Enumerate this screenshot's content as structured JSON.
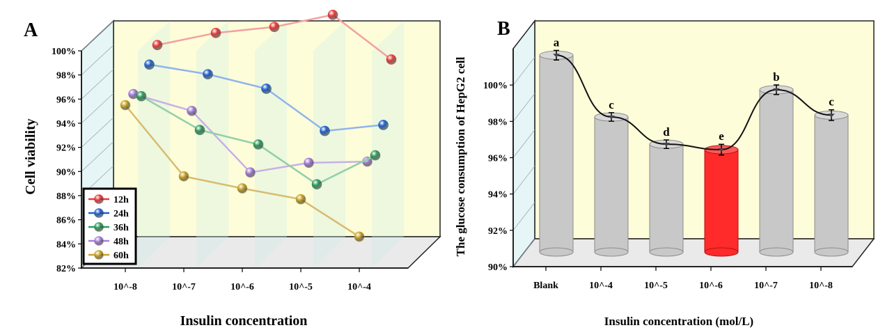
{
  "chart_data": [
    {
      "panel_label": "A",
      "type": "line",
      "title": "",
      "xlabel": "Insulin concentration",
      "ylabel": "Cell viability",
      "categories": [
        "10^-8",
        "10^-7",
        "10^-6",
        "10^-5",
        "10^-4"
      ],
      "ylim": [
        82,
        100
      ],
      "yticks": [
        "82%",
        "84%",
        "86%",
        "88%",
        "90%",
        "92%",
        "94%",
        "96%",
        "98%",
        "100%"
      ],
      "legend_position": "bottom-left",
      "series": [
        {
          "name": "12h",
          "values": [
            98.0,
            99.0,
            99.5,
            100.5,
            96.8
          ],
          "color": "#e83a3a",
          "line": "#f2a0a0"
        },
        {
          "name": "24h",
          "values": [
            97.0,
            96.2,
            95.0,
            91.5,
            92.0
          ],
          "color": "#1f5fcc",
          "line": "#8fb4ec"
        },
        {
          "name": "36h",
          "values": [
            95.0,
            92.2,
            91.0,
            87.7,
            90.1
          ],
          "color": "#2e9a5e",
          "line": "#91cfa8"
        },
        {
          "name": "48h",
          "values": [
            95.8,
            94.4,
            89.3,
            90.1,
            90.2
          ],
          "color": "#a57fd8",
          "line": "#c9aee8"
        },
        {
          "name": "60h",
          "values": [
            95.5,
            89.6,
            88.6,
            87.7,
            84.6
          ],
          "color": "#c9a227",
          "line": "#d8bb70"
        }
      ]
    },
    {
      "panel_label": "B",
      "type": "bar",
      "title": "",
      "xlabel": "Insulin concentration (mol/L)",
      "ylabel": "The glucose consumption of  HepG2 cell",
      "categories": [
        "Blank",
        "10^-4",
        "10^-5",
        "10^-6",
        "10^-7",
        "10^-8"
      ],
      "values": [
        100.8,
        97.4,
        95.9,
        95.6,
        98.9,
        97.5
      ],
      "errors": [
        0.15,
        0.12,
        0.12,
        0.18,
        0.15,
        0.18
      ],
      "letters": [
        "a",
        "c",
        "d",
        "e",
        "b",
        "c"
      ],
      "highlight_index": 3,
      "ylim": [
        90,
        102
      ],
      "yticks": [
        "90%",
        "92%",
        "94%",
        "96%",
        "98%",
        "100%"
      ],
      "bar_color": "#c8c8c8",
      "highlight_color": "#ff2a2a"
    }
  ]
}
